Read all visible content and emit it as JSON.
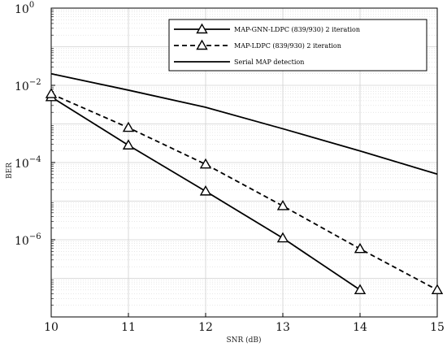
{
  "chart_data": {
    "type": "line",
    "xlabel": "SNR (dB)",
    "ylabel": "BER",
    "xlim": [
      10,
      15
    ],
    "ylim_log10": [
      -8,
      0
    ],
    "yscale": "log",
    "grid": true,
    "legend_position": "top-right",
    "x_ticks": [
      "10",
      "11",
      "12",
      "13",
      "14",
      "15"
    ],
    "y_ticks": [
      {
        "exp": 0,
        "label": "10",
        "sup": "0"
      },
      {
        "exp": -2,
        "label": "10",
        "sup": "−2"
      },
      {
        "exp": -4,
        "label": "10",
        "sup": "−4"
      },
      {
        "exp": -6,
        "label": "10",
        "sup": "−6"
      }
    ],
    "series": [
      {
        "name": "MAP-GNN-LDPC (839/930) 2 iteration",
        "style": "solid",
        "marker": "triangle",
        "x": [
          10,
          11,
          12,
          13,
          14
        ],
        "y": [
          0.005,
          0.00028,
          1.8e-05,
          1.1e-06,
          5e-08
        ]
      },
      {
        "name": "MAP-LDPC (839/930) 2 iteration",
        "style": "dashed",
        "marker": "triangle",
        "x": [
          10,
          11,
          12,
          13,
          14,
          15
        ],
        "y": [
          0.006,
          0.0008,
          9e-05,
          7.5e-06,
          5.8e-07,
          5e-08
        ]
      },
      {
        "name": "Serial MAP detection",
        "style": "solid",
        "marker": "none",
        "x": [
          10,
          11,
          12,
          13,
          14,
          15
        ],
        "y": [
          0.02,
          0.0075,
          0.0027,
          0.00075,
          0.0002,
          5e-05
        ]
      }
    ]
  },
  "colors": {
    "line": "#000000",
    "grid": "#d0d0d0",
    "axis": "#000000"
  }
}
